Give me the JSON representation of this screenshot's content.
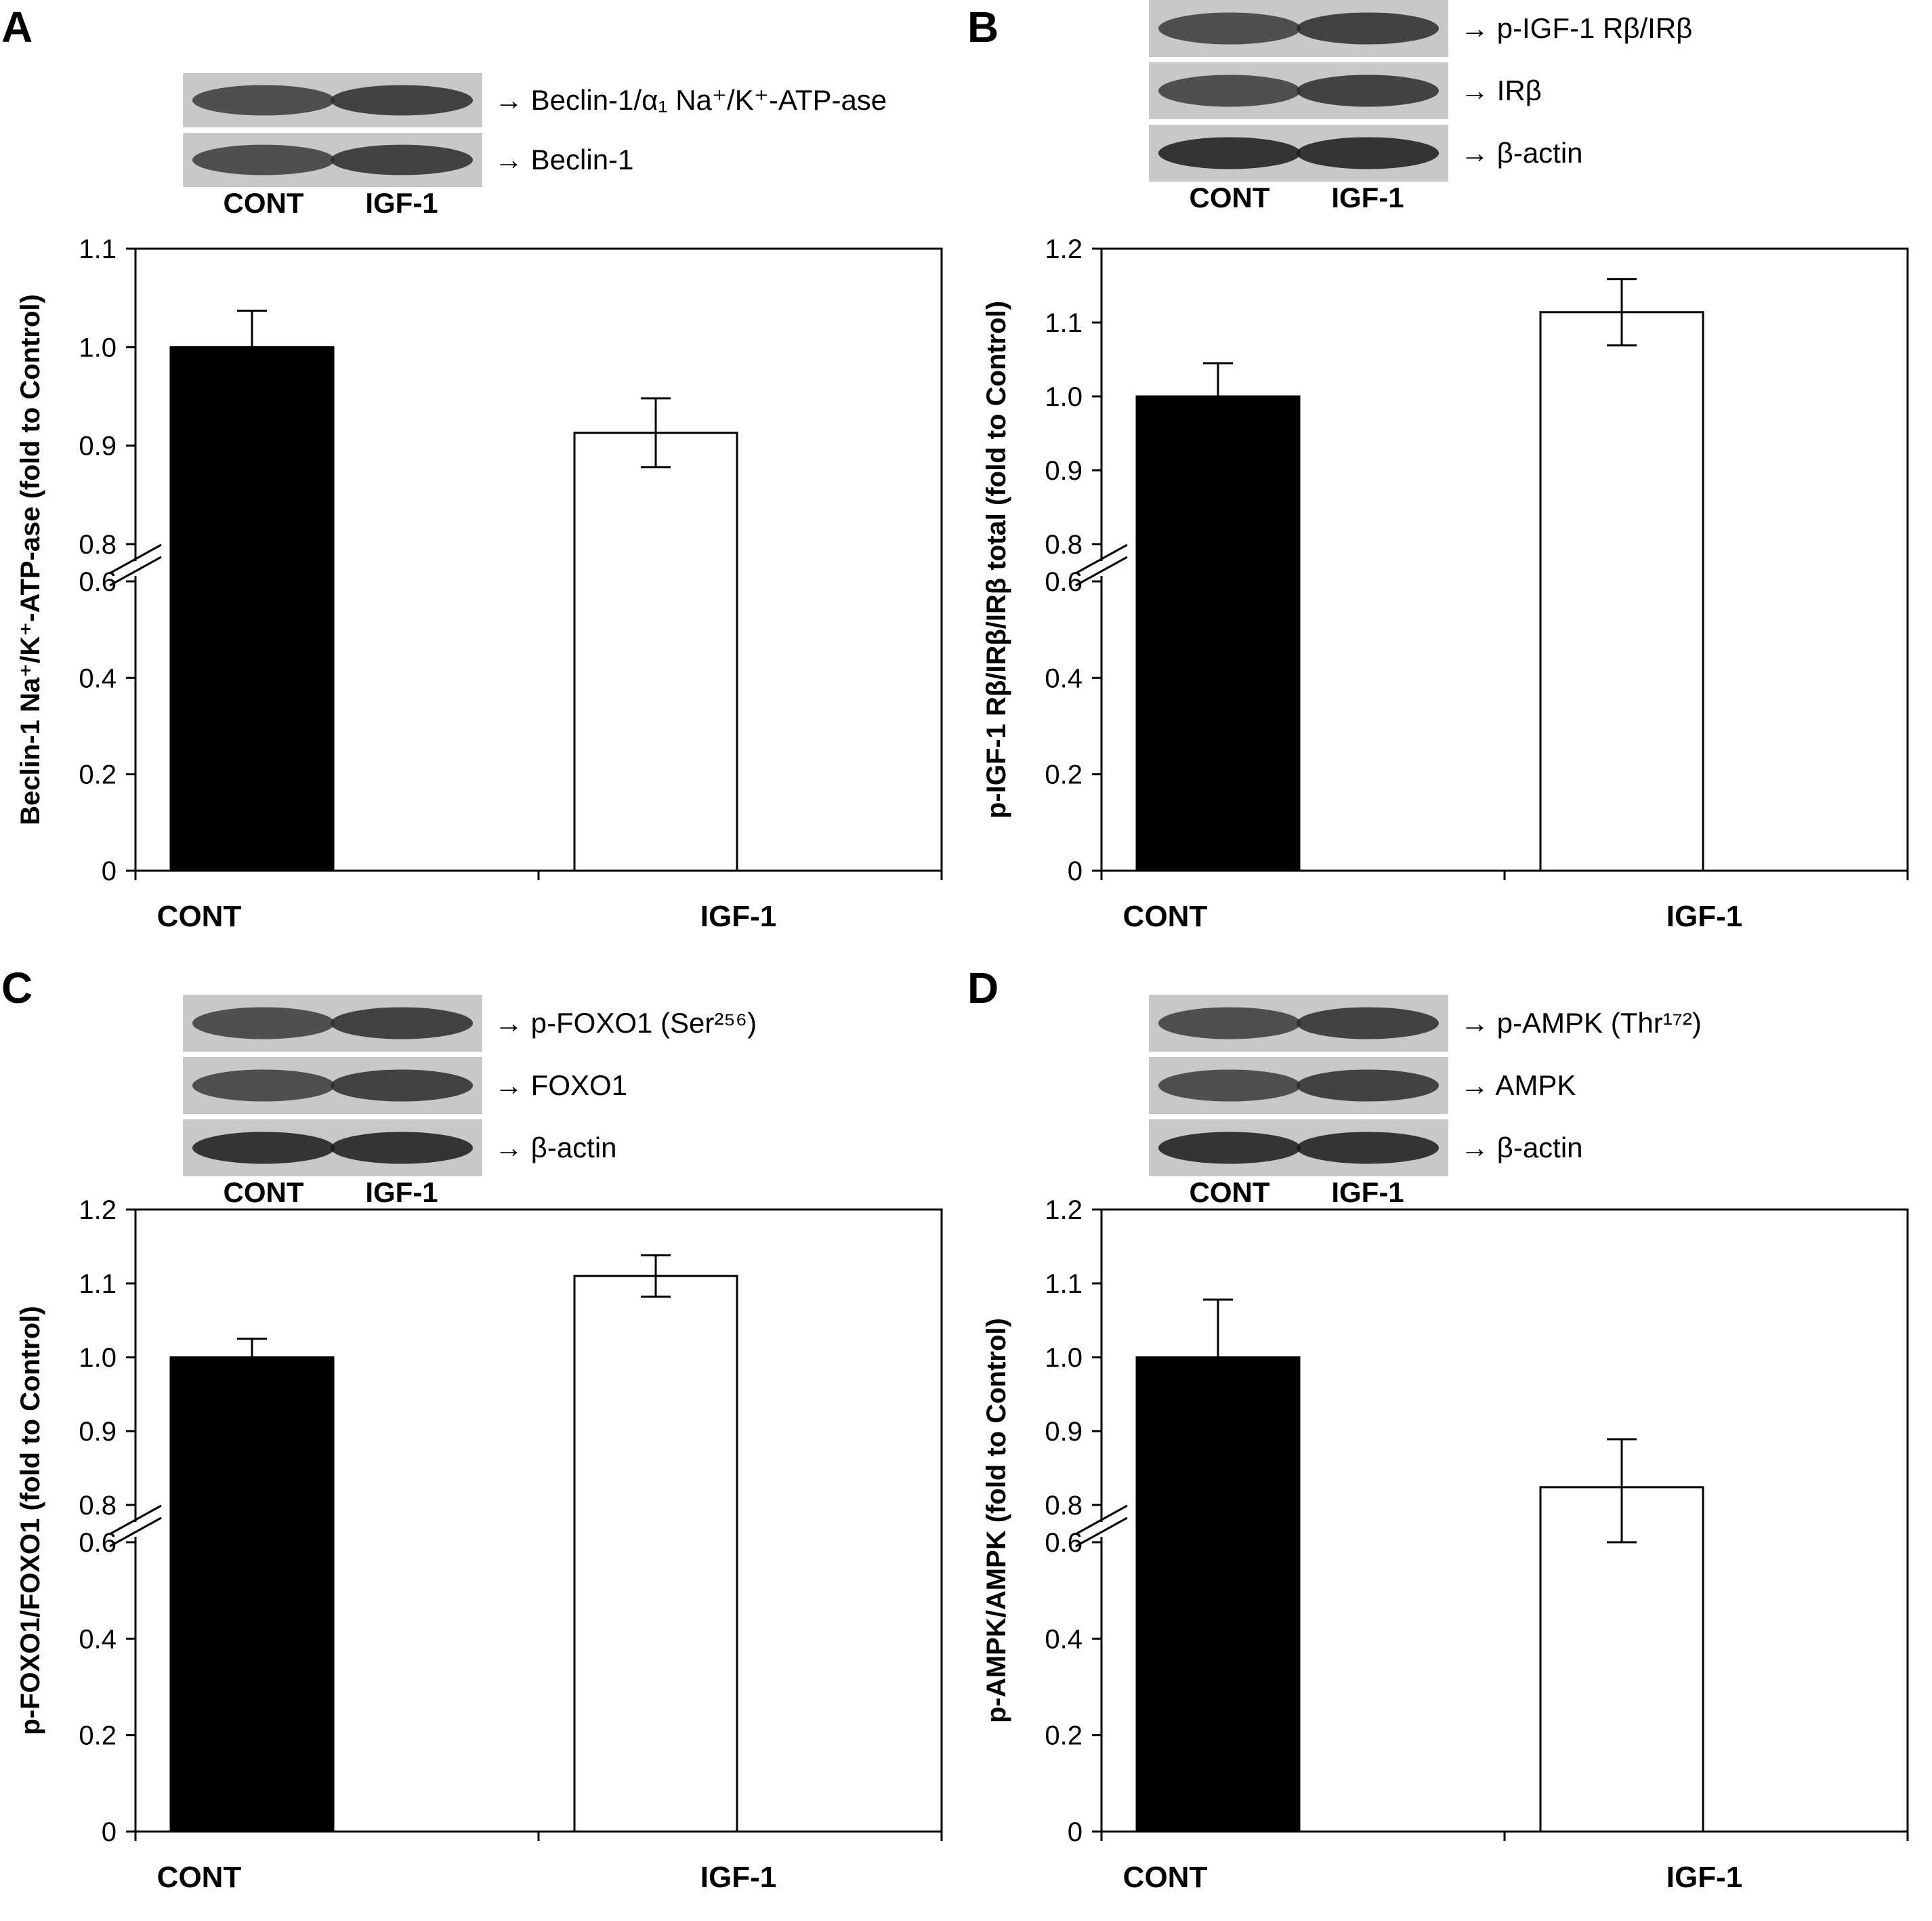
{
  "chart_data": [
    {
      "type": "bar",
      "panel": "A",
      "categories": [
        "CONT",
        "IGF-1"
      ],
      "values": [
        1.0,
        0.913
      ],
      "errors": [
        0.037,
        0.035
      ],
      "colors": [
        "#000000",
        "#ffffff"
      ],
      "ylabel": "Beclin-1 Na⁺/K⁺-ATP-ase (fold to Control)",
      "ylim": [
        0,
        1.1
      ],
      "ybreak": [
        0.6,
        0.8
      ],
      "yticks_low": [
        0,
        0.2,
        0.4,
        0.6
      ],
      "yticks_high": [
        0.8,
        0.9,
        1.0,
        1.1
      ],
      "ytick_labels_low": [
        "0",
        "0.2",
        "0.4",
        "0.6"
      ],
      "ytick_labels_high": [
        "0.8",
        "0.9",
        "1.0",
        "1.1"
      ],
      "grid": false,
      "blot_lanes": [
        "CONT",
        "IGF-1"
      ],
      "blot_labels": [
        "→ Beclin-1/α₁ Na⁺/K⁺-ATP-ase",
        "→ Beclin-1"
      ]
    },
    {
      "type": "bar",
      "panel": "B",
      "categories": [
        "CONT",
        "IGF-1"
      ],
      "values": [
        1.0,
        1.114
      ],
      "errors": [
        0.045,
        0.045
      ],
      "colors": [
        "#000000",
        "#ffffff"
      ],
      "ylabel": "p-IGF-1 Rβ/IRβ/IRβ total (fold to Control)",
      "ylim": [
        0,
        1.2
      ],
      "ybreak": [
        0.6,
        0.8
      ],
      "yticks_low": [
        0,
        0.2,
        0.4,
        0.6
      ],
      "yticks_high": [
        0.8,
        0.9,
        1.0,
        1.1,
        1.2
      ],
      "ytick_labels_low": [
        "0",
        "0.2",
        "0.4",
        "0.6"
      ],
      "ytick_labels_high": [
        "0.8",
        "0.9",
        "1.0",
        "1.1",
        "1.2"
      ],
      "grid": false,
      "blot_lanes": [
        "CONT",
        "IGF-1"
      ],
      "blot_labels": [
        "→ p-IGF-1 Rβ/IRβ",
        "→ IRβ",
        "→ β-actin"
      ]
    },
    {
      "type": "bar",
      "panel": "C",
      "categories": [
        "CONT",
        "IGF-1"
      ],
      "values": [
        1.0,
        1.11
      ],
      "errors": [
        0.025,
        0.028
      ],
      "colors": [
        "#000000",
        "#ffffff"
      ],
      "ylabel": "p-FOXO1/FOXO1 (fold to Control)",
      "ylim": [
        0,
        1.2
      ],
      "ybreak": [
        0.6,
        0.8
      ],
      "yticks_low": [
        0,
        0.2,
        0.4,
        0.6
      ],
      "yticks_high": [
        0.8,
        0.9,
        1.0,
        1.1,
        1.2
      ],
      "ytick_labels_low": [
        "0",
        "0.2",
        "0.4",
        "0.6"
      ],
      "ytick_labels_high": [
        "0.8",
        "0.9",
        "1.0",
        "1.1",
        "1.2"
      ],
      "grid": false,
      "blot_lanes": [
        "CONT",
        "IGF-1"
      ],
      "blot_labels": [
        "→ p-FOXO1 (Ser²⁵⁶)",
        "→ FOXO1",
        "→ β-actin"
      ]
    },
    {
      "type": "bar",
      "panel": "D",
      "categories": [
        "CONT",
        "IGF-1"
      ],
      "values": [
        1.0,
        0.824
      ],
      "errors": [
        0.078,
        0.065
      ],
      "colors": [
        "#000000",
        "#ffffff"
      ],
      "ylabel": "p-AMPK/AMPK (fold to Control)",
      "ylim": [
        0,
        1.2
      ],
      "ybreak": [
        0.6,
        0.8
      ],
      "yticks_low": [
        0,
        0.2,
        0.4,
        0.6
      ],
      "yticks_high": [
        0.8,
        0.9,
        1.0,
        1.1,
        1.2
      ],
      "ytick_labels_low": [
        "0",
        "0.2",
        "0.4",
        "0.6"
      ],
      "ytick_labels_high": [
        "0.8",
        "0.9",
        "1.0",
        "1.1",
        "1.2"
      ],
      "grid": false,
      "blot_lanes": [
        "CONT",
        "IGF-1"
      ],
      "blot_labels": [
        "→ p-AMPK (Thr¹⁷²)",
        "→ AMPK",
        "→ β-actin"
      ]
    }
  ]
}
